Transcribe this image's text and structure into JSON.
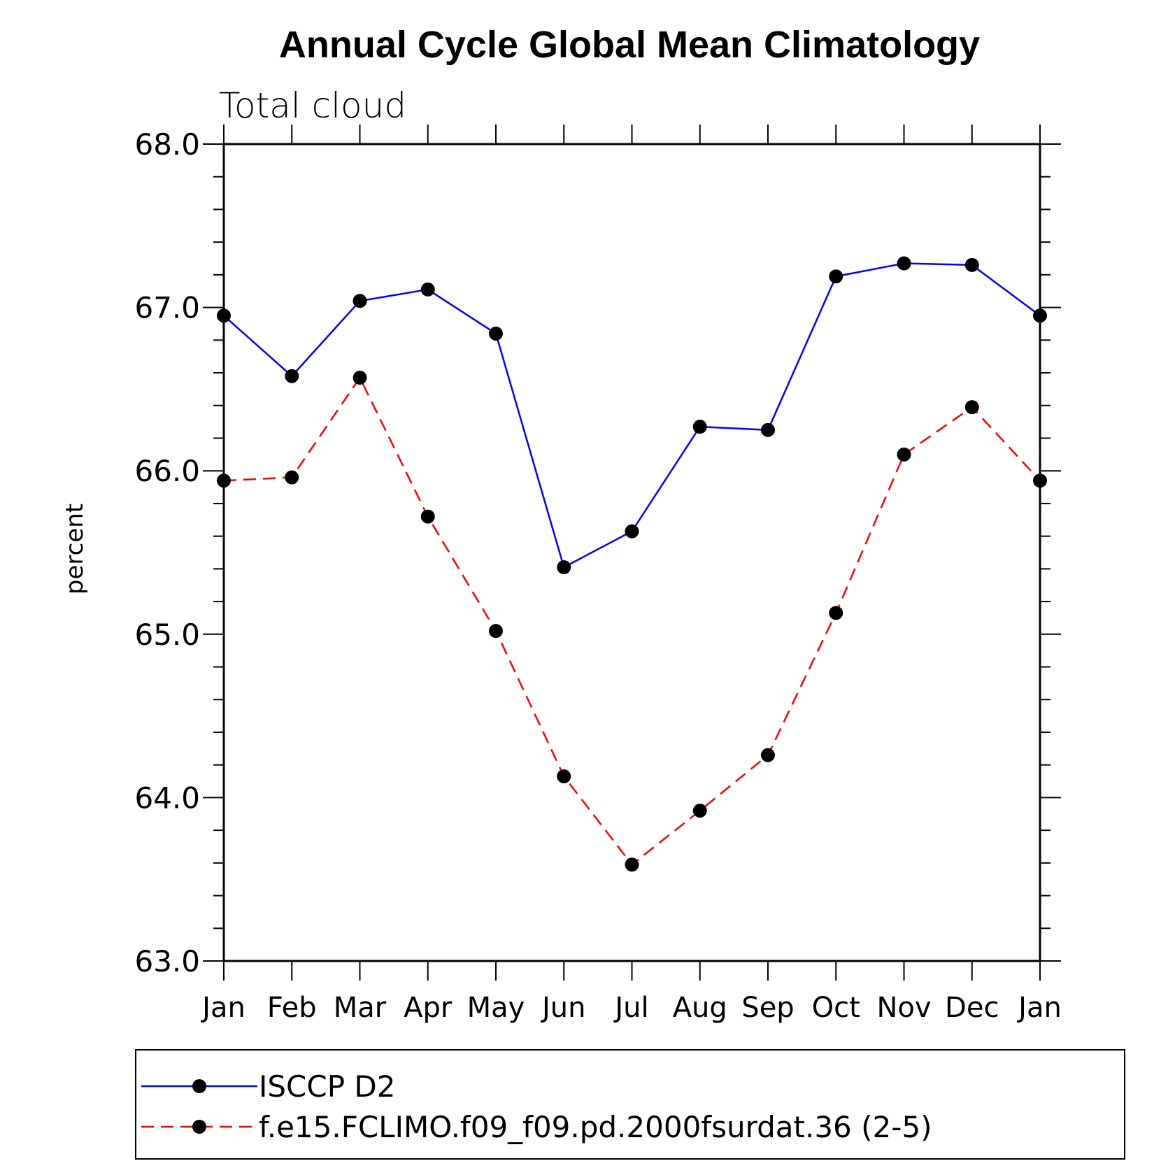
{
  "chart_data": {
    "type": "line",
    "title": "Annual Cycle Global Mean Climatology",
    "subtitle": "Total cloud",
    "ylabel": "percent",
    "xlabel": "",
    "ylim": [
      63.0,
      68.0
    ],
    "y_ticks": [
      "63.0",
      "64.0",
      "65.0",
      "66.0",
      "67.0",
      "68.0"
    ],
    "categories": [
      "Jan",
      "Feb",
      "Mar",
      "Apr",
      "May",
      "Jun",
      "Jul",
      "Aug",
      "Sep",
      "Oct",
      "Nov",
      "Dec",
      "Jan"
    ],
    "legend_position": "bottom",
    "series": [
      {
        "name": "ISCCP D2",
        "color": "#0000ff",
        "dash": "solid",
        "marker": "dot",
        "values": [
          66.95,
          66.58,
          67.04,
          67.11,
          66.84,
          65.41,
          65.63,
          66.27,
          66.25,
          67.19,
          67.27,
          67.26,
          66.95
        ]
      },
      {
        "name": "f.e15.FCLIMO.f09_f09.pd.2000fsurdat.36 (2-5)",
        "color": "#ff0000",
        "dash": "dashed",
        "marker": "dot",
        "values": [
          65.94,
          65.96,
          66.57,
          65.72,
          65.02,
          64.13,
          63.59,
          63.92,
          64.26,
          65.13,
          66.1,
          66.39,
          65.94
        ]
      }
    ]
  }
}
